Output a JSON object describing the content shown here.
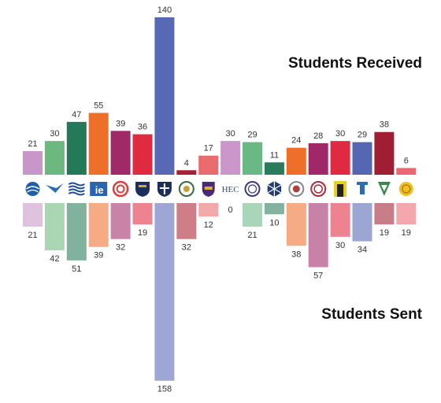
{
  "chart_data": {
    "type": "bar",
    "layout": "mirrored",
    "series": [
      {
        "name": "Students Received",
        "values": [
          21,
          30,
          47,
          55,
          39,
          36,
          140,
          4,
          17,
          30,
          29,
          11,
          24,
          28,
          30,
          29,
          38,
          6
        ]
      },
      {
        "name": "Students Sent",
        "values": [
          21,
          42,
          51,
          39,
          32,
          19,
          158,
          32,
          12,
          0,
          21,
          10,
          38,
          57,
          30,
          34,
          19,
          19
        ]
      }
    ],
    "colors": [
      "#c896c8",
      "#6cb87e",
      "#247a58",
      "#ee6f2a",
      "#a02a68",
      "#e02a40",
      "#5768b4",
      "#a82030",
      "#ea6b6b",
      "#cb96c9",
      "#6ab884",
      "#2a7a5c",
      "#ee6f2a",
      "#a02868",
      "#e02a42",
      "#5566b2",
      "#a01e34",
      "#ec6870"
    ],
    "category_icons": [
      "blue-globe-logo",
      "blue-wing-logo",
      "blue-waves-logo",
      "ie-logo",
      "red-spiral-logo",
      "navy-shield-logo",
      "navy-cross-shield-logo",
      "green-seal-logo",
      "purple-crest-logo",
      "hec-logo",
      "purple-seal-logo",
      "navy-hexagon-logo",
      "gray-seal-logo",
      "red-seal-logo",
      "yellow-gate-logo",
      "blue-tower-logo",
      "green-emblem-logo",
      "yellow-seal-logo"
    ],
    "icon_text": {
      "fourth": "ie",
      "tenth": "HEC"
    },
    "ylim": [
      0,
      160
    ]
  }
}
